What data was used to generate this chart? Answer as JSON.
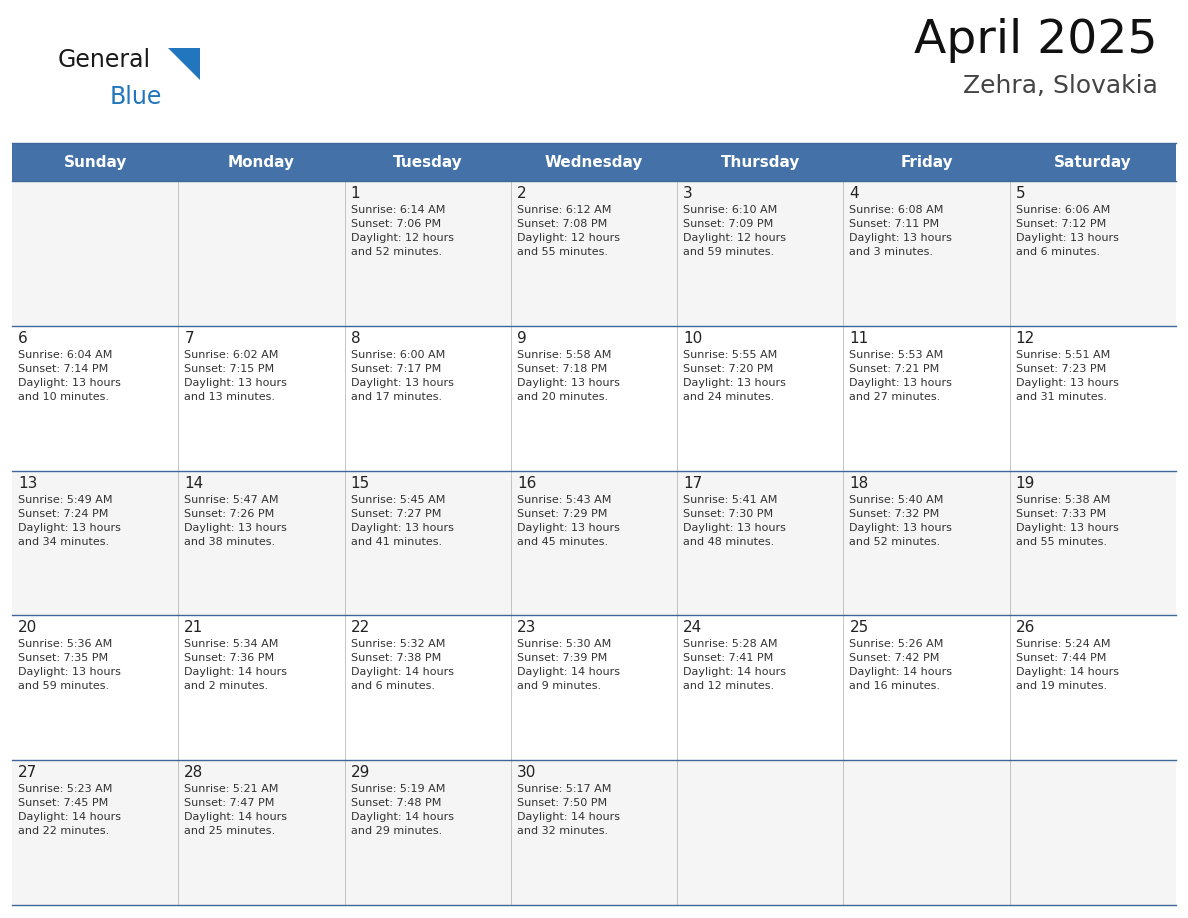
{
  "title": "April 2025",
  "subtitle": "Zehra, Slovakia",
  "days_of_week": [
    "Sunday",
    "Monday",
    "Tuesday",
    "Wednesday",
    "Thursday",
    "Friday",
    "Saturday"
  ],
  "header_bg": "#4472A8",
  "header_text": "#FFFFFF",
  "cell_bg": "#F5F5F5",
  "cell_bg_white": "#FFFFFF",
  "border_color": "#3D6899",
  "day_num_color": "#222222",
  "text_color": "#333333",
  "calendar": [
    [
      {
        "day": "",
        "info": ""
      },
      {
        "day": "",
        "info": ""
      },
      {
        "day": "1",
        "info": "Sunrise: 6:14 AM\nSunset: 7:06 PM\nDaylight: 12 hours\nand 52 minutes."
      },
      {
        "day": "2",
        "info": "Sunrise: 6:12 AM\nSunset: 7:08 PM\nDaylight: 12 hours\nand 55 minutes."
      },
      {
        "day": "3",
        "info": "Sunrise: 6:10 AM\nSunset: 7:09 PM\nDaylight: 12 hours\nand 59 minutes."
      },
      {
        "day": "4",
        "info": "Sunrise: 6:08 AM\nSunset: 7:11 PM\nDaylight: 13 hours\nand 3 minutes."
      },
      {
        "day": "5",
        "info": "Sunrise: 6:06 AM\nSunset: 7:12 PM\nDaylight: 13 hours\nand 6 minutes."
      }
    ],
    [
      {
        "day": "6",
        "info": "Sunrise: 6:04 AM\nSunset: 7:14 PM\nDaylight: 13 hours\nand 10 minutes."
      },
      {
        "day": "7",
        "info": "Sunrise: 6:02 AM\nSunset: 7:15 PM\nDaylight: 13 hours\nand 13 minutes."
      },
      {
        "day": "8",
        "info": "Sunrise: 6:00 AM\nSunset: 7:17 PM\nDaylight: 13 hours\nand 17 minutes."
      },
      {
        "day": "9",
        "info": "Sunrise: 5:58 AM\nSunset: 7:18 PM\nDaylight: 13 hours\nand 20 minutes."
      },
      {
        "day": "10",
        "info": "Sunrise: 5:55 AM\nSunset: 7:20 PM\nDaylight: 13 hours\nand 24 minutes."
      },
      {
        "day": "11",
        "info": "Sunrise: 5:53 AM\nSunset: 7:21 PM\nDaylight: 13 hours\nand 27 minutes."
      },
      {
        "day": "12",
        "info": "Sunrise: 5:51 AM\nSunset: 7:23 PM\nDaylight: 13 hours\nand 31 minutes."
      }
    ],
    [
      {
        "day": "13",
        "info": "Sunrise: 5:49 AM\nSunset: 7:24 PM\nDaylight: 13 hours\nand 34 minutes."
      },
      {
        "day": "14",
        "info": "Sunrise: 5:47 AM\nSunset: 7:26 PM\nDaylight: 13 hours\nand 38 minutes."
      },
      {
        "day": "15",
        "info": "Sunrise: 5:45 AM\nSunset: 7:27 PM\nDaylight: 13 hours\nand 41 minutes."
      },
      {
        "day": "16",
        "info": "Sunrise: 5:43 AM\nSunset: 7:29 PM\nDaylight: 13 hours\nand 45 minutes."
      },
      {
        "day": "17",
        "info": "Sunrise: 5:41 AM\nSunset: 7:30 PM\nDaylight: 13 hours\nand 48 minutes."
      },
      {
        "day": "18",
        "info": "Sunrise: 5:40 AM\nSunset: 7:32 PM\nDaylight: 13 hours\nand 52 minutes."
      },
      {
        "day": "19",
        "info": "Sunrise: 5:38 AM\nSunset: 7:33 PM\nDaylight: 13 hours\nand 55 minutes."
      }
    ],
    [
      {
        "day": "20",
        "info": "Sunrise: 5:36 AM\nSunset: 7:35 PM\nDaylight: 13 hours\nand 59 minutes."
      },
      {
        "day": "21",
        "info": "Sunrise: 5:34 AM\nSunset: 7:36 PM\nDaylight: 14 hours\nand 2 minutes."
      },
      {
        "day": "22",
        "info": "Sunrise: 5:32 AM\nSunset: 7:38 PM\nDaylight: 14 hours\nand 6 minutes."
      },
      {
        "day": "23",
        "info": "Sunrise: 5:30 AM\nSunset: 7:39 PM\nDaylight: 14 hours\nand 9 minutes."
      },
      {
        "day": "24",
        "info": "Sunrise: 5:28 AM\nSunset: 7:41 PM\nDaylight: 14 hours\nand 12 minutes."
      },
      {
        "day": "25",
        "info": "Sunrise: 5:26 AM\nSunset: 7:42 PM\nDaylight: 14 hours\nand 16 minutes."
      },
      {
        "day": "26",
        "info": "Sunrise: 5:24 AM\nSunset: 7:44 PM\nDaylight: 14 hours\nand 19 minutes."
      }
    ],
    [
      {
        "day": "27",
        "info": "Sunrise: 5:23 AM\nSunset: 7:45 PM\nDaylight: 14 hours\nand 22 minutes."
      },
      {
        "day": "28",
        "info": "Sunrise: 5:21 AM\nSunset: 7:47 PM\nDaylight: 14 hours\nand 25 minutes."
      },
      {
        "day": "29",
        "info": "Sunrise: 5:19 AM\nSunset: 7:48 PM\nDaylight: 14 hours\nand 29 minutes."
      },
      {
        "day": "30",
        "info": "Sunrise: 5:17 AM\nSunset: 7:50 PM\nDaylight: 14 hours\nand 32 minutes."
      },
      {
        "day": "",
        "info": ""
      },
      {
        "day": "",
        "info": ""
      },
      {
        "day": "",
        "info": ""
      }
    ]
  ],
  "logo_general_color": "#1a1a1a",
  "logo_blue_color": "#2176BE",
  "logo_triangle_color": "#2176BE"
}
